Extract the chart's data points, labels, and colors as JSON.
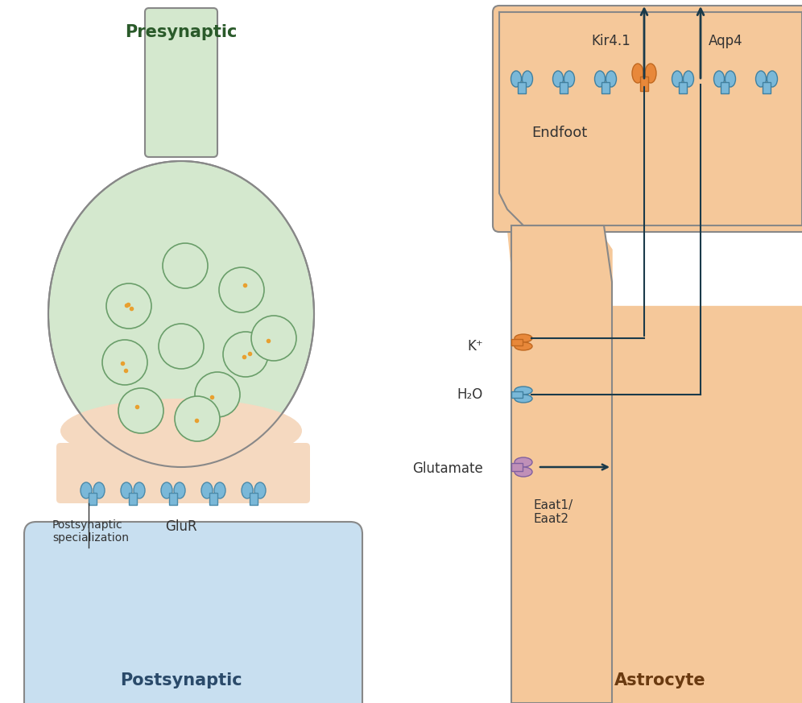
{
  "bg_color": "#ffffff",
  "astrocyte_color": "#f5c89a",
  "astrocyte_edge": "#888888",
  "presynaptic_fill": "#d4e8ce",
  "presynaptic_edge": "#888888",
  "postsynaptic_fill": "#c8dff0",
  "postsynaptic_edge": "#888888",
  "synapse_fill": "#f5d9c0",
  "vesicle_fill": "#d4e8ce",
  "vesicle_edge": "#6a9e6a",
  "vesicle_dot_color": "#e8a030",
  "channel_blue": "#7ab8d8",
  "channel_orange": "#e8883a",
  "channel_purple": "#c090b8",
  "arrow_color": "#1a3a4a",
  "text_color": "#333333",
  "label_color": "#333333",
  "title_presynaptic": "Presynaptic",
  "title_postsynaptic": "Postsynaptic",
  "title_astrocyte": "Astrocyte",
  "label_endfoot": "Endfoot",
  "label_glur": "GluR",
  "label_post_spec": "Postsynaptic\nspecialization",
  "label_k": "K⁺",
  "label_h2o": "H₂O",
  "label_glutamate": "Glutamate",
  "label_eaat": "Eaat1/\nEaat2",
  "label_kir": "Kir4.1",
  "label_aqp": "Aqp4"
}
